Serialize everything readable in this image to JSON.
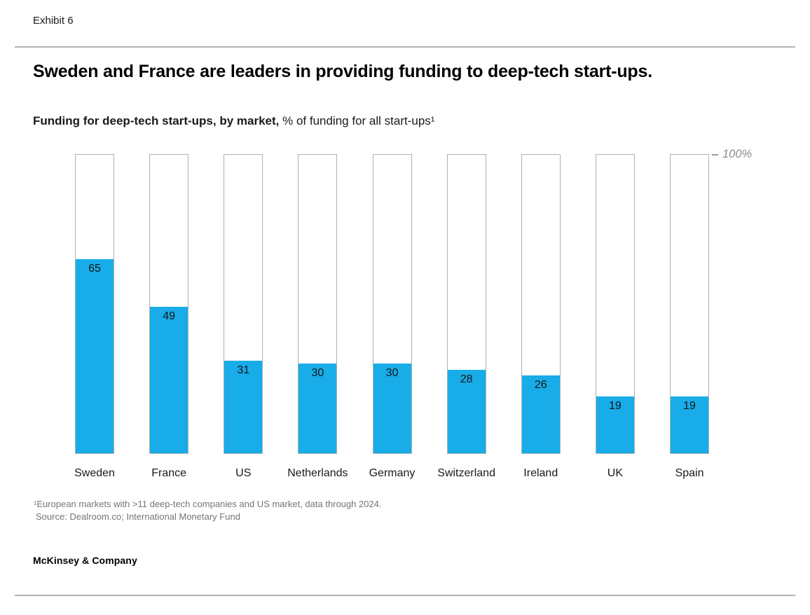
{
  "header": {
    "exhibit_label": "Exhibit 6",
    "title": "Sweden and France are leaders in providing funding to deep-tech start-ups.",
    "subtitle_bold": "Funding for deep-tech start-ups, by market,",
    "subtitle_regular": "% of funding for all start-ups¹"
  },
  "chart_data": {
    "type": "bar",
    "title": "Funding for deep-tech start-ups, by market",
    "unit": "% of funding for all start-ups",
    "categories": [
      "Sweden",
      "France",
      "US",
      "Netherlands",
      "Germany",
      "Switzerland",
      "Ireland",
      "UK",
      "Spain"
    ],
    "values": [
      65,
      49,
      31,
      30,
      30,
      28,
      26,
      19,
      19
    ],
    "ylim": [
      0,
      100
    ],
    "max_label": "100%",
    "grid": false,
    "legend": "none",
    "bar_style": "blue fill inside full-height 100% outline frame, value label inside fill at top"
  },
  "footnote": {
    "line1": "¹European markets with >11 deep-tech companies and US market, data through 2024.",
    "source": "Source: Dealroom.co; International Monetary Fund"
  },
  "footer": {
    "brand": "McKinsey & Company"
  },
  "colors": {
    "bar_fill": "#18ACE8",
    "bar_frame": "#B0B0B0",
    "divider": "#B4B4B4",
    "axis_label": "#8C8C8C",
    "footnote_text": "#757575"
  }
}
